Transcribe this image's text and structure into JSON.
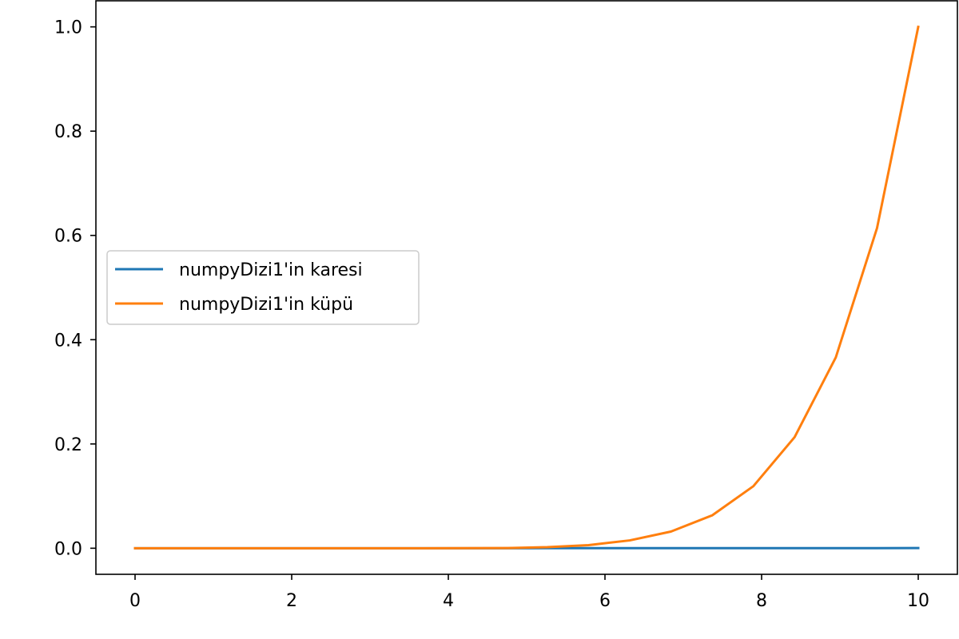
{
  "chart_data": {
    "type": "line",
    "x": [
      0,
      0.5263,
      1.0526,
      1.5789,
      2.1053,
      2.6316,
      3.1579,
      3.6842,
      4.2105,
      4.7368,
      5.2632,
      5.7895,
      6.3158,
      6.8421,
      7.3684,
      7.8947,
      8.4211,
      8.9474,
      9.4737,
      10
    ],
    "series": [
      {
        "name": "numpyDizi1'in karesi",
        "color": "#1f77b4",
        "values": [
          0,
          0,
          0,
          0,
          0,
          0,
          0,
          0,
          0,
          0,
          0.0001,
          0.0001,
          0.0001,
          0.0001,
          0.0001,
          0.0002,
          0.0002,
          0.0002,
          0.0002,
          0.0003
        ]
      },
      {
        "name": "numpyDizi1'in küpü",
        "color": "#ff7f0e",
        "values": [
          0,
          0,
          0,
          0,
          0,
          0,
          0,
          0,
          0.0001,
          0.0003,
          0.002,
          0.006,
          0.015,
          0.032,
          0.063,
          0.119,
          0.213,
          0.366,
          0.614,
          1.0
        ]
      }
    ],
    "xlim": [
      -0.5,
      10.5
    ],
    "ylim": [
      -0.05,
      1.05
    ],
    "xticks": [
      0,
      2,
      4,
      6,
      8,
      10
    ],
    "yticks": [
      0.0,
      0.2,
      0.4,
      0.6,
      0.8,
      1.0
    ],
    "xtick_labels": [
      "0",
      "2",
      "4",
      "6",
      "8",
      "10"
    ],
    "ytick_labels": [
      "0.0",
      "0.2",
      "0.4",
      "0.6",
      "0.8",
      "1.0"
    ],
    "grid": false,
    "legend_position": "center-left"
  }
}
